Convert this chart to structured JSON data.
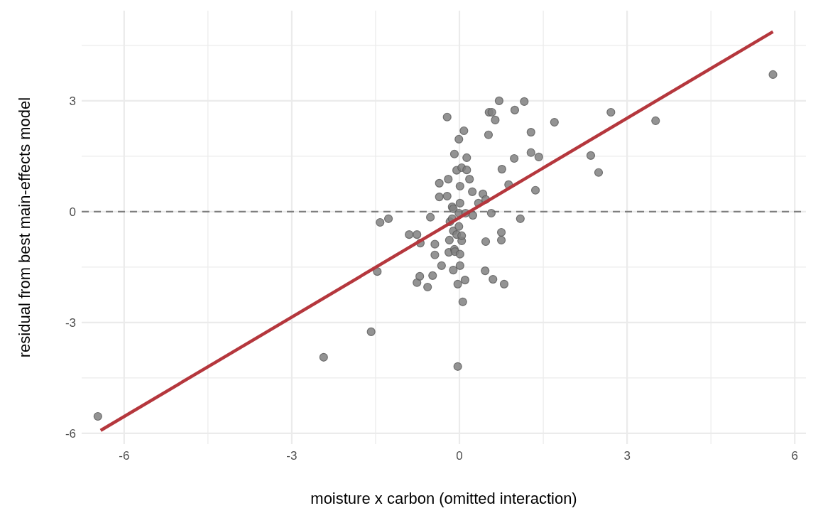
{
  "chart_data": {
    "type": "scatter",
    "xlabel": "moisture x carbon (omitted interaction)",
    "ylabel": "residual from best main-effects model",
    "xlim": [
      -6.76,
      6.2
    ],
    "ylim": [
      -6.29,
      5.44
    ],
    "xticks": [
      -6,
      {
        "value": -4.5,
        "label": null
      },
      -3,
      {
        "value": -1.5,
        "label": null
      },
      0,
      {
        "value": 1.5,
        "label": null
      },
      3,
      {
        "value": 4.5,
        "label": null
      },
      6
    ],
    "yticks": [
      -6,
      {
        "value": -4.5,
        "label": null
      },
      -3,
      {
        "value": -1.5,
        "label": null
      },
      0,
      {
        "value": 1.5,
        "label": null
      },
      3,
      {
        "value": 4.5,
        "label": null
      }
    ],
    "grid": true,
    "ref_lines": [
      {
        "axis": "y",
        "value": 0,
        "color": "#7f7f7f",
        "line_style": "dashed"
      }
    ],
    "series": [
      {
        "marker": "circle",
        "color": "#808080",
        "x": [
          -6.47,
          -2.43,
          -1.58,
          -1.47,
          -1.42,
          -1.27,
          -0.9,
          -0.76,
          -0.7,
          -0.76,
          -0.71,
          -0.57,
          -0.52,
          -0.48,
          -0.44,
          -0.44,
          -0.36,
          -0.36,
          -0.32,
          -0.22,
          -0.22,
          -0.2,
          -0.19,
          -0.18,
          -0.17,
          -0.13,
          -0.13,
          -0.11,
          -0.11,
          -0.11,
          -0.09,
          -0.09,
          -0.08,
          -0.05,
          -0.05,
          -0.03,
          -0.03,
          -0.01,
          -0.01,
          -0.01,
          0.01,
          0.01,
          0.01,
          0.01,
          0.04,
          0.04,
          0.04,
          0.06,
          0.08,
          0.1,
          0.13,
          0.13,
          0.11,
          0.18,
          0.23,
          0.24,
          0.34,
          0.42,
          0.46,
          0.47,
          0.47,
          0.52,
          0.53,
          0.57,
          0.58,
          0.6,
          0.64,
          0.71,
          0.75,
          0.75,
          0.76,
          0.8,
          0.88,
          0.98,
          0.99,
          1.09,
          1.16,
          1.28,
          1.28,
          1.36,
          1.42,
          1.7,
          2.35,
          2.49,
          2.71,
          3.51,
          5.61
        ],
        "values": [
          -5.54,
          -3.94,
          -3.25,
          -1.62,
          -0.29,
          -0.19,
          -0.62,
          -0.62,
          -0.85,
          -1.92,
          -1.75,
          -2.04,
          -0.15,
          -1.73,
          -1.17,
          -0.88,
          0.77,
          0.4,
          -1.46,
          0.42,
          2.56,
          0.88,
          -1.1,
          -0.77,
          -0.27,
          -0.19,
          0.13,
          0.08,
          -1.58,
          -0.52,
          1.56,
          -1.02,
          -1.08,
          1.12,
          -0.62,
          -1.96,
          -4.19,
          1.96,
          -0.4,
          -0.04,
          0.69,
          0.23,
          -1.46,
          -1.15,
          1.19,
          -0.79,
          -0.65,
          -2.44,
          2.19,
          -1.85,
          1.13,
          1.46,
          -0.04,
          0.88,
          0.54,
          -0.1,
          0.23,
          0.48,
          -1.6,
          -0.81,
          0.33,
          2.08,
          2.69,
          -0.04,
          2.69,
          -1.83,
          2.48,
          3.0,
          -0.56,
          -0.77,
          1.15,
          -1.96,
          0.73,
          1.44,
          2.75,
          -0.19,
          2.98,
          2.15,
          1.6,
          0.58,
          1.48,
          2.42,
          1.52,
          1.06,
          2.69,
          2.46,
          3.71
        ]
      },
      {
        "type": "line",
        "color": "#b5373d",
        "line_style": "solid",
        "x": [
          -6.42,
          5.61
        ],
        "values": [
          -5.92,
          4.87
        ]
      }
    ]
  }
}
